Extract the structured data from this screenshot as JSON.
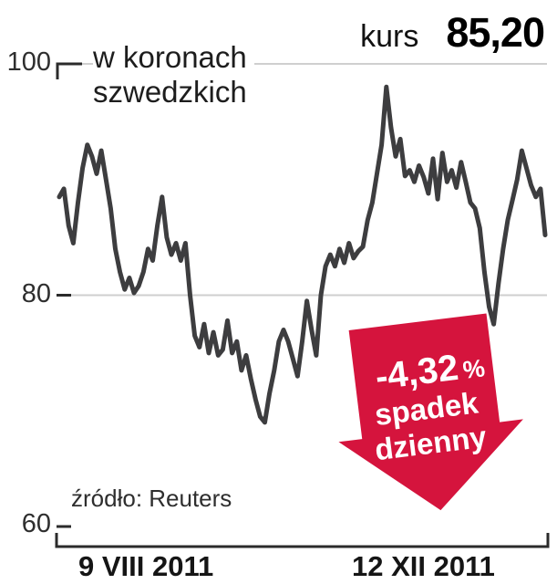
{
  "header": {
    "label": "kurs",
    "value": "85,20"
  },
  "note": {
    "line1": "w koronach",
    "line2": "szwedzkich"
  },
  "source": "źródło: Reuters",
  "badge": {
    "value": "-4,32",
    "unit": "%",
    "text1": "spadek",
    "text2": "dzienny",
    "color": "#d5143d"
  },
  "axes": {
    "y": [
      "100",
      "80",
      "60"
    ],
    "x": [
      "9 VIII 2011",
      "12 XII 2011"
    ]
  },
  "colors": {
    "line": "#3d3d3f",
    "grid": "#cfcfcf",
    "axis": "#2b2b2b"
  },
  "chart_data": {
    "type": "line",
    "title": "kurs 85,20",
    "unit_note": "w koronach szwedzkich",
    "source": "źródło: Reuters",
    "x_range": [
      "9 VIII 2011",
      "12 XII 2011"
    ],
    "ylim": [
      60,
      100
    ],
    "y_ticks": [
      60,
      80,
      100
    ],
    "last_price": 85.2,
    "daily_change_percent": -4.32,
    "daily_change_label": "-4,32% spadek dzienny",
    "values": [
      88.5,
      89.2,
      86.0,
      84.5,
      88.0,
      91.0,
      93.0,
      92.0,
      90.5,
      92.5,
      90.0,
      87.5,
      84.0,
      82.0,
      80.5,
      81.5,
      80.2,
      80.8,
      82.0,
      84.0,
      83.0,
      86.0,
      88.5,
      85.0,
      83.5,
      84.5,
      83.0,
      84.5,
      80.0,
      76.5,
      75.5,
      77.5,
      75.0,
      76.8,
      74.8,
      75.3,
      77.8,
      75.0,
      76.0,
      73.5,
      74.8,
      72.8,
      71.0,
      69.5,
      69.0,
      71.5,
      73.5,
      76.0,
      77.0,
      76.0,
      74.5,
      73.0,
      76.0,
      79.5,
      77.0,
      74.8,
      80.0,
      82.5,
      83.5,
      82.5,
      84.0,
      82.8,
      84.5,
      83.2,
      83.8,
      84.2,
      86.5,
      88.0,
      90.5,
      93.0,
      98.0,
      94.5,
      92.0,
      93.5,
      90.3,
      90.8,
      89.8,
      91.2,
      90.2,
      88.8,
      91.8,
      88.3,
      92.3,
      89.8,
      90.8,
      89.3,
      91.5,
      89.8,
      88.0,
      87.5,
      85.8,
      82.0,
      79.0,
      77.5,
      81.0,
      84.0,
      86.5,
      88.2,
      90.0,
      92.5,
      91.0,
      89.5,
      88.5,
      89.2,
      85.2
    ]
  }
}
